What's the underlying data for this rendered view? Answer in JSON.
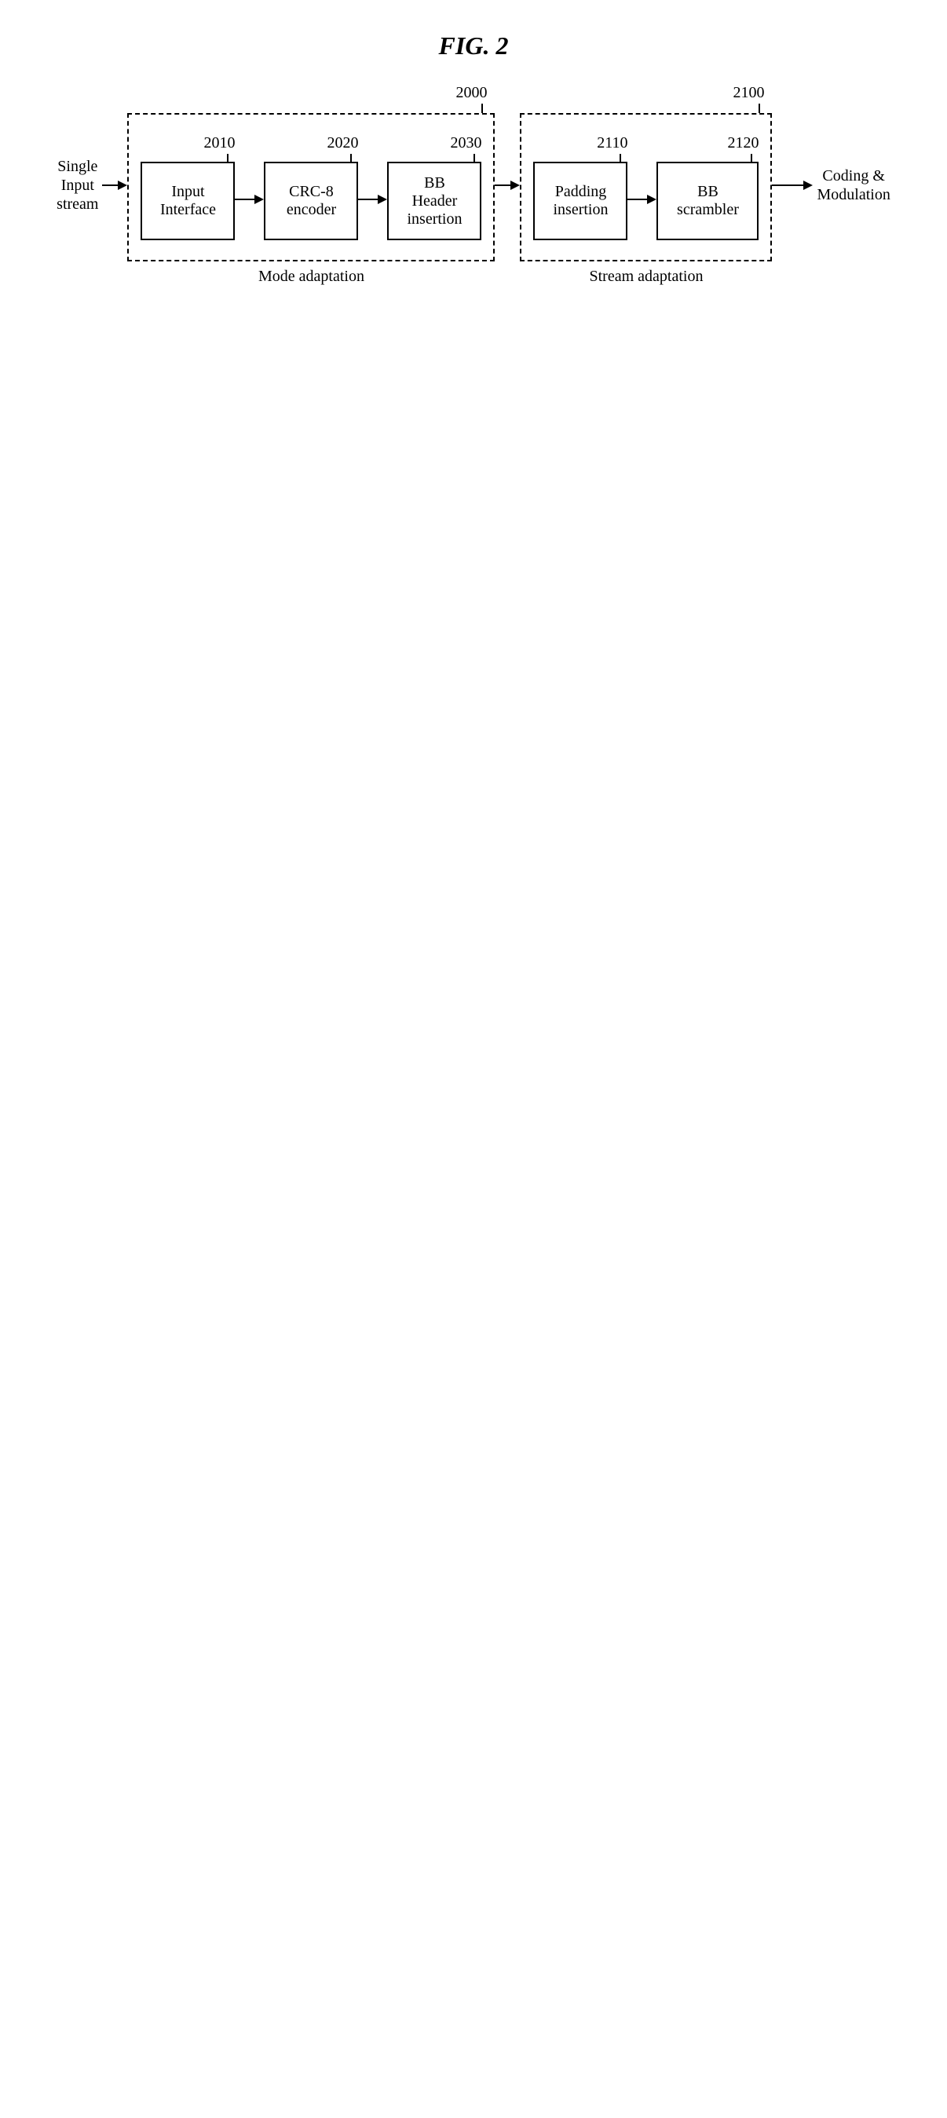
{
  "figure_title": "FIG. 2",
  "input_label": "Single\nInput\nstream",
  "output_label": "Coding &\nModulation",
  "groups": [
    {
      "id": "2000",
      "caption": "Mode adaptation",
      "blocks": [
        {
          "id": "2010",
          "label": "Input\nInterface",
          "width": 120,
          "height": 100
        },
        {
          "id": "2020",
          "label": "CRC-8\nencoder",
          "width": 120,
          "height": 100
        },
        {
          "id": "2030",
          "label": "BB\nHeader\ninsertion",
          "width": 120,
          "height": 100
        }
      ]
    },
    {
      "id": "2100",
      "caption": "Stream adaptation",
      "blocks": [
        {
          "id": "2110",
          "label": "Padding\ninsertion",
          "width": 120,
          "height": 100
        },
        {
          "id": "2120",
          "label": "BB\nscrambler",
          "width": 130,
          "height": 100
        }
      ]
    }
  ],
  "style": {
    "arrow_between_blocks_width": 25,
    "arrow_into_group_width": 20,
    "arrow_between_groups_width": 20,
    "arrow_output_width": 40
  }
}
